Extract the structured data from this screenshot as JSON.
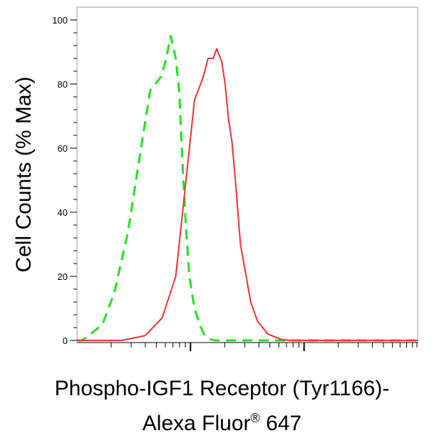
{
  "chart_data": {
    "type": "line",
    "title": "",
    "ylabel": "Cell Counts (% Max)",
    "xlabel": {
      "line1": "Phospho-IGF1 Receptor (Tyr1166)-",
      "line2_prefix": "Alexa Fluor",
      "line2_symbol": "®",
      "line2_suffix": " 647"
    },
    "ylim": [
      0,
      100
    ],
    "yticks": [
      0,
      20,
      40,
      60,
      80,
      100
    ],
    "xscale": "log",
    "xlim": [
      0,
      1
    ],
    "grid": false,
    "legend": "none",
    "series": [
      {
        "color": "#22e022",
        "style": "dashed",
        "x": [
          0.0,
          0.015,
          0.04,
          0.075,
          0.11,
          0.15,
          0.185,
          0.215,
          0.245,
          0.26,
          0.275,
          0.29,
          0.3,
          0.31,
          0.32,
          0.33,
          0.345,
          0.36,
          0.375,
          0.39,
          0.405,
          0.42,
          0.45,
          1.0
        ],
        "values": [
          0,
          0,
          2,
          5,
          15,
          34,
          58,
          78,
          82,
          87,
          95,
          88,
          78,
          55,
          35,
          20,
          10,
          5,
          1.5,
          0.4,
          0,
          0,
          0,
          0
        ]
      },
      {
        "color": "#ee3333",
        "style": "solid",
        "x": [
          0.0,
          0.13,
          0.2,
          0.25,
          0.29,
          0.325,
          0.345,
          0.37,
          0.385,
          0.4,
          0.41,
          0.425,
          0.435,
          0.445,
          0.455,
          0.465,
          0.48,
          0.51,
          0.53,
          0.56,
          0.6,
          0.625,
          0.65,
          1.0
        ],
        "values": [
          0,
          0,
          1.5,
          7,
          20,
          55,
          75,
          82,
          88,
          88,
          91,
          87,
          80,
          69,
          62,
          50,
          30,
          12,
          6,
          2,
          0.3,
          0,
          0,
          0
        ]
      }
    ]
  }
}
